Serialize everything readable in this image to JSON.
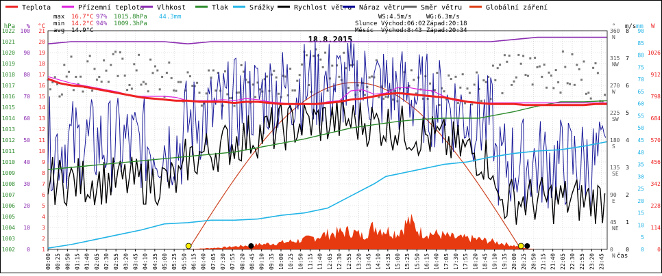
{
  "chart_data": {
    "type": "line",
    "title": "18.8.2015",
    "xlabel": "čas",
    "legend": [
      {
        "label": "Teplota",
        "color": "#ee2222"
      },
      {
        "label": "Přízemní teplota",
        "color": "#dd22dd"
      },
      {
        "label": "Vlhkost",
        "color": "#8a2ab0"
      },
      {
        "label": "Tlak",
        "color": "#2a8a2a"
      },
      {
        "label": "Srážky",
        "color": "#22b4e6"
      },
      {
        "label": "Rychlost větru",
        "color": "#000000"
      },
      {
        "label": "Náraz větru",
        "color": "#000090"
      },
      {
        "label": "Směr větru",
        "color": "#666666"
      },
      {
        "label": "Globální záření",
        "color": "#dd3b11"
      }
    ],
    "stats": {
      "max_label": "max",
      "max_temp": "16.7°C",
      "max_hum": "97%",
      "max_press": "1015.8hPa",
      "rain": "44.3mm",
      "min_label": "min",
      "min_temp": "14.2°C",
      "min_hum": "94%",
      "min_press": "1009.3hPa",
      "avg_label": "avg",
      "avg_temp": "14.9°C",
      "ws": "WS:4.5m/s",
      "wg": "WG:6.3m/s",
      "sun_label": "Slunce",
      "sun_rise": "Východ:06:02",
      "sun_set": "Západ:20:18",
      "moon_label": "Měsíc",
      "moon_rise": "Východ:8:43",
      "moon_set": "Západ:20:34"
    },
    "axes": {
      "hpa": {
        "label": "hPa",
        "ticks": [
          "1002",
          "1003",
          "1004",
          "1005",
          "1006",
          "1007",
          "1008",
          "1009",
          "1010",
          "1011",
          "1012",
          "1013",
          "1014",
          "1015",
          "1016",
          "1017",
          "1018",
          "1019",
          "1020",
          "1021",
          "1022"
        ],
        "range": [
          1002,
          1022
        ],
        "color": "#2a8a2a"
      },
      "pct": {
        "label": "%",
        "ticks": [
          "0",
          "10",
          "20",
          "30",
          "40",
          "50",
          "60",
          "70",
          "80",
          "90",
          "100"
        ],
        "range": [
          0,
          100
        ],
        "color": "#8a2ab0"
      },
      "temp": {
        "label": "°C",
        "ticks": [
          "1",
          "2",
          "3",
          "4",
          "5",
          "6",
          "7",
          "8",
          "9",
          "10",
          "11",
          "12",
          "13",
          "14",
          "15",
          "16",
          "17",
          "18",
          "19",
          "20",
          "21"
        ],
        "range": [
          1,
          21
        ],
        "color": "#ee2222"
      },
      "dir": {
        "label": "°",
        "ticks": [
          {
            "deg": "0",
            "name": "N"
          },
          {
            "deg": "45",
            "name": "NE"
          },
          {
            "deg": "90",
            "name": "E"
          },
          {
            "deg": "135",
            "name": "SE"
          },
          {
            "deg": "180",
            "name": "S"
          },
          {
            "deg": "225",
            "name": "SW"
          },
          {
            "deg": "270",
            "name": "W"
          },
          {
            "deg": "315",
            "name": "NW"
          },
          {
            "deg": "360",
            "name": "N"
          }
        ],
        "range": [
          0,
          360
        ],
        "color": "#555555"
      },
      "ms": {
        "label": "m/s",
        "ticks": [
          "0",
          "1",
          "2",
          "3",
          "4",
          "5",
          "6",
          "7",
          "8"
        ],
        "range": [
          0,
          8
        ],
        "color": "#000000"
      },
      "mm": {
        "label": "mm",
        "ticks": [
          "0",
          "5",
          "10",
          "15",
          "20",
          "25",
          "30",
          "35",
          "40",
          "45",
          "50",
          "55",
          "60",
          "65",
          "70",
          "75",
          "80",
          "85",
          "90"
        ],
        "range": [
          0,
          90
        ],
        "color": "#22b4e6"
      },
      "w": {
        "label": "W",
        "ticks": [
          "0",
          "114",
          "228",
          "342",
          "456",
          "570",
          "684",
          "798",
          "912",
          "1026"
        ],
        "range": [
          0,
          1140
        ],
        "color": "#ee2222"
      }
    },
    "x_ticks": [
      "00:00",
      "00:25",
      "00:50",
      "01:15",
      "01:40",
      "02:05",
      "02:30",
      "02:55",
      "03:20",
      "03:45",
      "04:10",
      "04:35",
      "05:00",
      "05:25",
      "05:50",
      "06:15",
      "06:40",
      "07:05",
      "07:30",
      "07:55",
      "08:20",
      "08:45",
      "09:10",
      "09:35",
      "10:00",
      "10:25",
      "10:50",
      "11:15",
      "11:40",
      "12:05",
      "12:30",
      "12:55",
      "13:20",
      "13:45",
      "14:10",
      "14:35",
      "15:00",
      "15:25",
      "15:50",
      "16:15",
      "16:40",
      "17:05",
      "17:30",
      "17:55",
      "18:20",
      "18:45",
      "19:10",
      "19:35",
      "20:00",
      "20:25",
      "20:50",
      "21:15",
      "21:40",
      "22:05",
      "22:30",
      "22:55",
      "23:20",
      "23:45"
    ],
    "series": [
      {
        "name": "Teplota",
        "unit": "°C",
        "points": [
          [
            0,
            16.6
          ],
          [
            30,
            16.2
          ],
          [
            60,
            16.0
          ],
          [
            90,
            15.9
          ],
          [
            120,
            15.7
          ],
          [
            150,
            15.5
          ],
          [
            180,
            15.3
          ],
          [
            210,
            15.1
          ],
          [
            240,
            14.9
          ],
          [
            270,
            14.8
          ],
          [
            300,
            14.7
          ],
          [
            330,
            14.6
          ],
          [
            360,
            14.6
          ],
          [
            390,
            14.5
          ],
          [
            420,
            14.5
          ],
          [
            450,
            14.5
          ],
          [
            480,
            14.4
          ],
          [
            510,
            14.5
          ],
          [
            540,
            14.5
          ],
          [
            570,
            14.4
          ],
          [
            600,
            14.3
          ],
          [
            630,
            14.3
          ],
          [
            660,
            14.3
          ],
          [
            690,
            14.3
          ],
          [
            720,
            14.4
          ],
          [
            750,
            14.5
          ],
          [
            780,
            14.7
          ],
          [
            810,
            14.8
          ],
          [
            840,
            15.0
          ],
          [
            870,
            15.2
          ],
          [
            900,
            15.3
          ],
          [
            930,
            15.2
          ],
          [
            960,
            15.1
          ],
          [
            990,
            15.0
          ],
          [
            1020,
            14.9
          ],
          [
            1050,
            14.7
          ],
          [
            1080,
            14.5
          ],
          [
            1110,
            14.4
          ],
          [
            1140,
            14.3
          ],
          [
            1170,
            14.3
          ],
          [
            1200,
            14.3
          ],
          [
            1230,
            14.2
          ],
          [
            1260,
            14.2
          ],
          [
            1290,
            14.2
          ],
          [
            1320,
            14.2
          ],
          [
            1350,
            14.2
          ],
          [
            1380,
            14.2
          ],
          [
            1410,
            14.3
          ],
          [
            1439,
            14.3
          ]
        ]
      },
      {
        "name": "Přízemní teplota",
        "unit": "°C",
        "points": [
          [
            0,
            16.8
          ],
          [
            60,
            16.2
          ],
          [
            120,
            15.8
          ],
          [
            180,
            15.4
          ],
          [
            210,
            15.1
          ],
          [
            240,
            15.0
          ],
          [
            270,
            15.0
          ],
          [
            300,
            15.0
          ],
          [
            330,
            14.9
          ],
          [
            360,
            14.6
          ],
          [
            390,
            14.6
          ],
          [
            420,
            14.6
          ],
          [
            450,
            14.7
          ],
          [
            480,
            14.6
          ],
          [
            510,
            14.8
          ],
          [
            540,
            14.7
          ],
          [
            570,
            14.5
          ],
          [
            600,
            14.4
          ],
          [
            630,
            14.3
          ],
          [
            660,
            14.3
          ],
          [
            690,
            14.3
          ],
          [
            720,
            14.5
          ],
          [
            750,
            14.6
          ],
          [
            780,
            15.5
          ],
          [
            810,
            15.6
          ],
          [
            840,
            15.2
          ],
          [
            870,
            15.3
          ],
          [
            900,
            15.8
          ],
          [
            930,
            15.8
          ],
          [
            960,
            15.6
          ],
          [
            990,
            15.5
          ],
          [
            1020,
            15.0
          ],
          [
            1050,
            14.6
          ],
          [
            1080,
            14.5
          ],
          [
            1110,
            14.4
          ],
          [
            1140,
            14.4
          ],
          [
            1200,
            14.4
          ],
          [
            1260,
            14.4
          ],
          [
            1320,
            14.4
          ],
          [
            1380,
            14.4
          ],
          [
            1439,
            14.4
          ]
        ]
      },
      {
        "name": "Vlhkost",
        "unit": "%",
        "points": [
          [
            0,
            94
          ],
          [
            60,
            95
          ],
          [
            120,
            95
          ],
          [
            180,
            95
          ],
          [
            240,
            95
          ],
          [
            300,
            95
          ],
          [
            360,
            94
          ],
          [
            420,
            95
          ],
          [
            480,
            95
          ],
          [
            540,
            95
          ],
          [
            600,
            95
          ],
          [
            660,
            95
          ],
          [
            720,
            95
          ],
          [
            780,
            95
          ],
          [
            840,
            95
          ],
          [
            900,
            95
          ],
          [
            960,
            95
          ],
          [
            1020,
            95
          ],
          [
            1080,
            95
          ],
          [
            1140,
            95
          ],
          [
            1200,
            96
          ],
          [
            1260,
            97
          ],
          [
            1320,
            97
          ],
          [
            1380,
            97
          ],
          [
            1439,
            97
          ]
        ]
      },
      {
        "name": "Tlak",
        "unit": "hPa",
        "points": [
          [
            0,
            1009.3
          ],
          [
            60,
            1009.5
          ],
          [
            120,
            1009.7
          ],
          [
            180,
            1009.9
          ],
          [
            240,
            1010.1
          ],
          [
            300,
            1010.3
          ],
          [
            360,
            1010.5
          ],
          [
            420,
            1010.7
          ],
          [
            480,
            1010.9
          ],
          [
            540,
            1011.3
          ],
          [
            600,
            1011.7
          ],
          [
            660,
            1012.1
          ],
          [
            720,
            1012.6
          ],
          [
            780,
            1013.1
          ],
          [
            840,
            1013.4
          ],
          [
            900,
            1013.7
          ],
          [
            960,
            1013.9
          ],
          [
            1020,
            1014.0
          ],
          [
            1080,
            1014.0
          ],
          [
            1110,
            1014.0
          ],
          [
            1140,
            1014.2
          ],
          [
            1200,
            1014.6
          ],
          [
            1260,
            1015.1
          ],
          [
            1320,
            1015.5
          ],
          [
            1380,
            1015.5
          ],
          [
            1439,
            1015.6
          ]
        ]
      },
      {
        "name": "Srážky",
        "unit": "mm",
        "points": [
          [
            0,
            0.5
          ],
          [
            60,
            2
          ],
          [
            120,
            4
          ],
          [
            180,
            6
          ],
          [
            240,
            8
          ],
          [
            300,
            10.5
          ],
          [
            360,
            11
          ],
          [
            420,
            12
          ],
          [
            480,
            12
          ],
          [
            540,
            12.5
          ],
          [
            600,
            14
          ],
          [
            660,
            15
          ],
          [
            720,
            17
          ],
          [
            780,
            22
          ],
          [
            840,
            27
          ],
          [
            870,
            30
          ],
          [
            900,
            31
          ],
          [
            960,
            33
          ],
          [
            1020,
            35
          ],
          [
            1080,
            36
          ],
          [
            1140,
            38
          ],
          [
            1200,
            39.5
          ],
          [
            1260,
            40.5
          ],
          [
            1320,
            41
          ],
          [
            1380,
            42.5
          ],
          [
            1439,
            44.3
          ]
        ]
      },
      {
        "name": "Globální záření",
        "unit": "W",
        "points": [
          [
            0,
            0
          ],
          [
            362,
            0
          ],
          [
            400,
            5
          ],
          [
            450,
            10
          ],
          [
            500,
            18
          ],
          [
            540,
            25
          ],
          [
            600,
            35
          ],
          [
            660,
            50
          ],
          [
            720,
            80
          ],
          [
            780,
            95
          ],
          [
            810,
            70
          ],
          [
            840,
            120
          ],
          [
            870,
            100
          ],
          [
            900,
            85
          ],
          [
            930,
            150
          ],
          [
            960,
            90
          ],
          [
            1000,
            80
          ],
          [
            1050,
            60
          ],
          [
            1100,
            55
          ],
          [
            1150,
            40
          ],
          [
            1200,
            20
          ],
          [
            1230,
            5
          ],
          [
            1260,
            0
          ],
          [
            1439,
            0
          ]
        ]
      }
    ],
    "sun_curve": {
      "rise": "06:02",
      "set": "20:18",
      "peak": "13:10"
    }
  }
}
